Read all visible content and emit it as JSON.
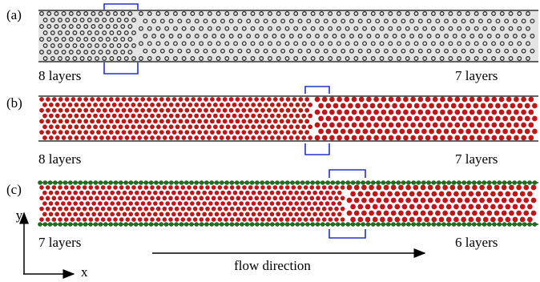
{
  "panels": [
    {
      "label": "(a)",
      "left": "8 layers",
      "right": "7 layers"
    },
    {
      "label": "(b)",
      "left": "8 layers",
      "right": "7 layers"
    },
    {
      "label": "(c)",
      "left": "7 layers",
      "right": "6 layers"
    }
  ],
  "axes": {
    "y": "y",
    "x": "x"
  },
  "flow": "flow direction"
}
